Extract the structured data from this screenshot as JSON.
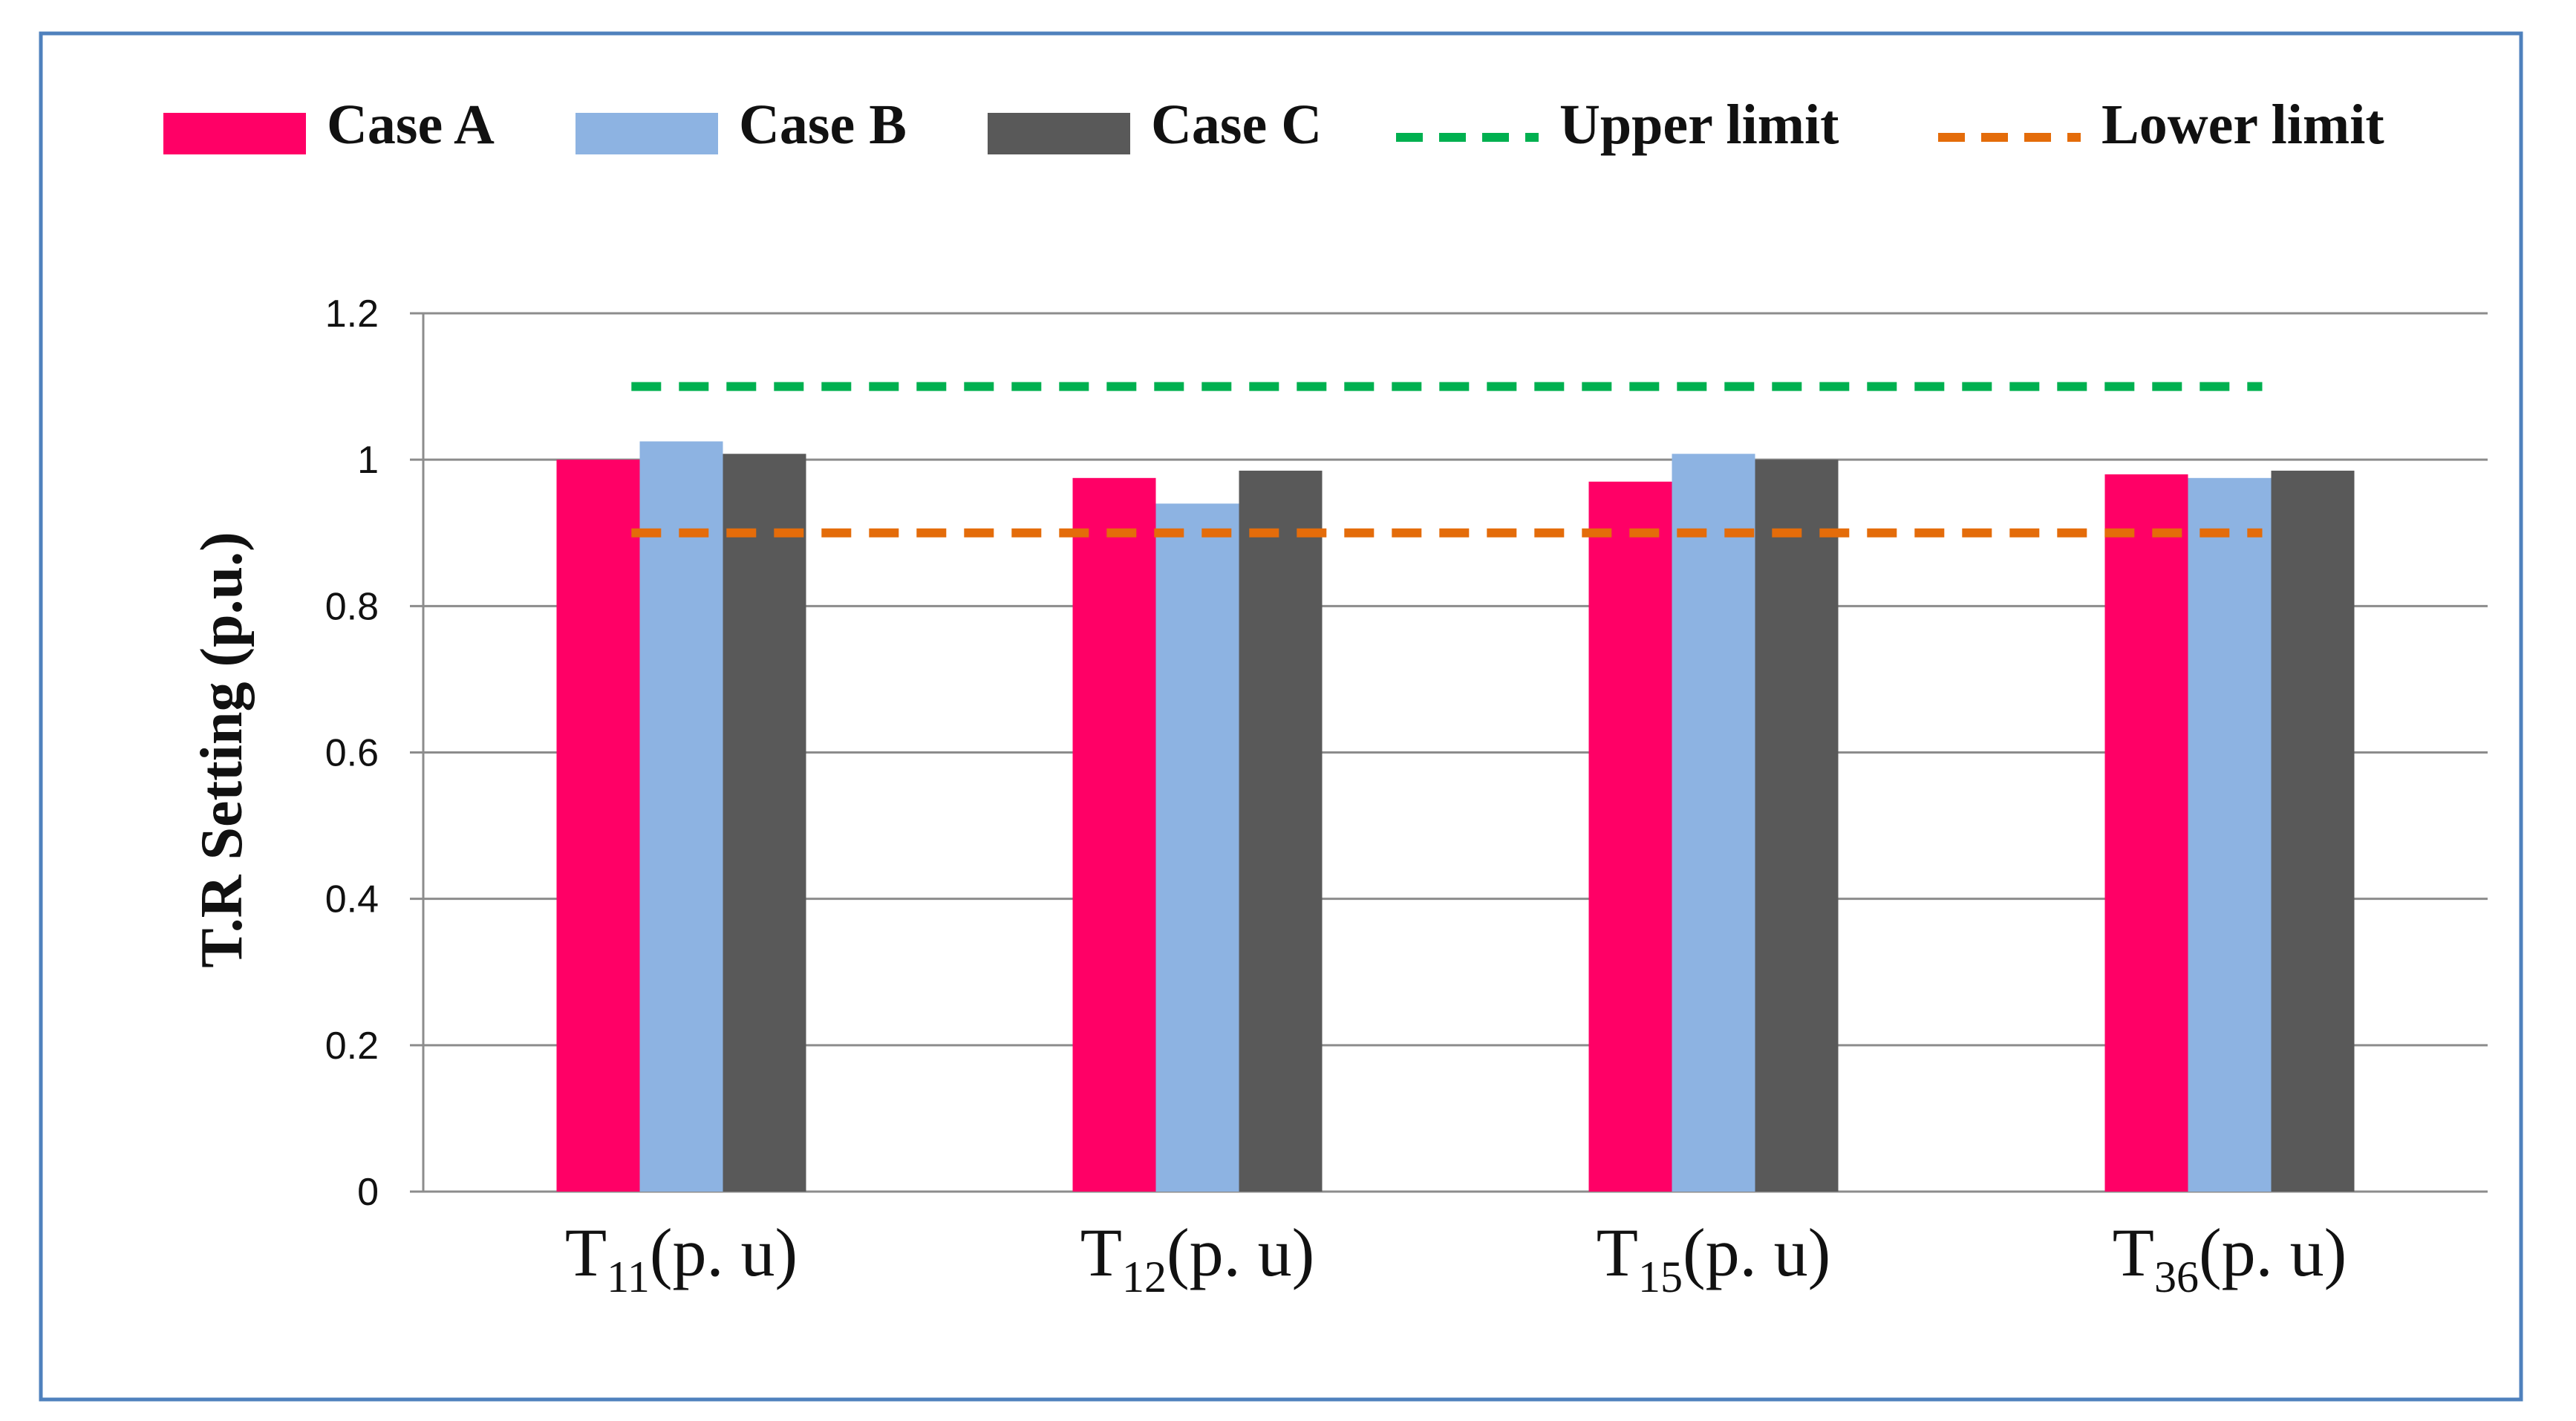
{
  "chart_data": {
    "type": "bar",
    "title": "",
    "xlabel": "",
    "ylabel": "T.R Setting (p.u.)",
    "ylim": [
      0,
      1.2
    ],
    "yticks": [
      0,
      0.2,
      0.4,
      0.6,
      0.8,
      1,
      1.2
    ],
    "ytick_labels": [
      "0",
      "0.2",
      "0.4",
      "0.6",
      "0.8",
      "1",
      "1.2"
    ],
    "grid": true,
    "legend_position": "top",
    "categories": [
      {
        "main": "T",
        "sub": "11",
        "suffix": "(p. u)"
      },
      {
        "main": "T",
        "sub": "12",
        "suffix": "(p. u)"
      },
      {
        "main": "T",
        "sub": "15",
        "suffix": "(p. u)"
      },
      {
        "main": "T",
        "sub": "36",
        "suffix": "(p. u)"
      }
    ],
    "series": [
      {
        "name": "Case A",
        "color": "#ff0066",
        "values": [
          1.0,
          0.975,
          0.97,
          0.98
        ]
      },
      {
        "name": "Case B",
        "color": "#8db3e2",
        "values": [
          1.025,
          0.94,
          1.008,
          0.975
        ]
      },
      {
        "name": "Case C",
        "color": "#595959",
        "values": [
          1.008,
          0.985,
          1.0,
          0.985
        ]
      }
    ],
    "reference_lines": [
      {
        "name": "Upper limit",
        "value": 1.1,
        "color": "#00b050",
        "style": "dashed"
      },
      {
        "name": "Lower limit",
        "value": 0.9,
        "color": "#e46c0a",
        "style": "dashed"
      }
    ]
  }
}
